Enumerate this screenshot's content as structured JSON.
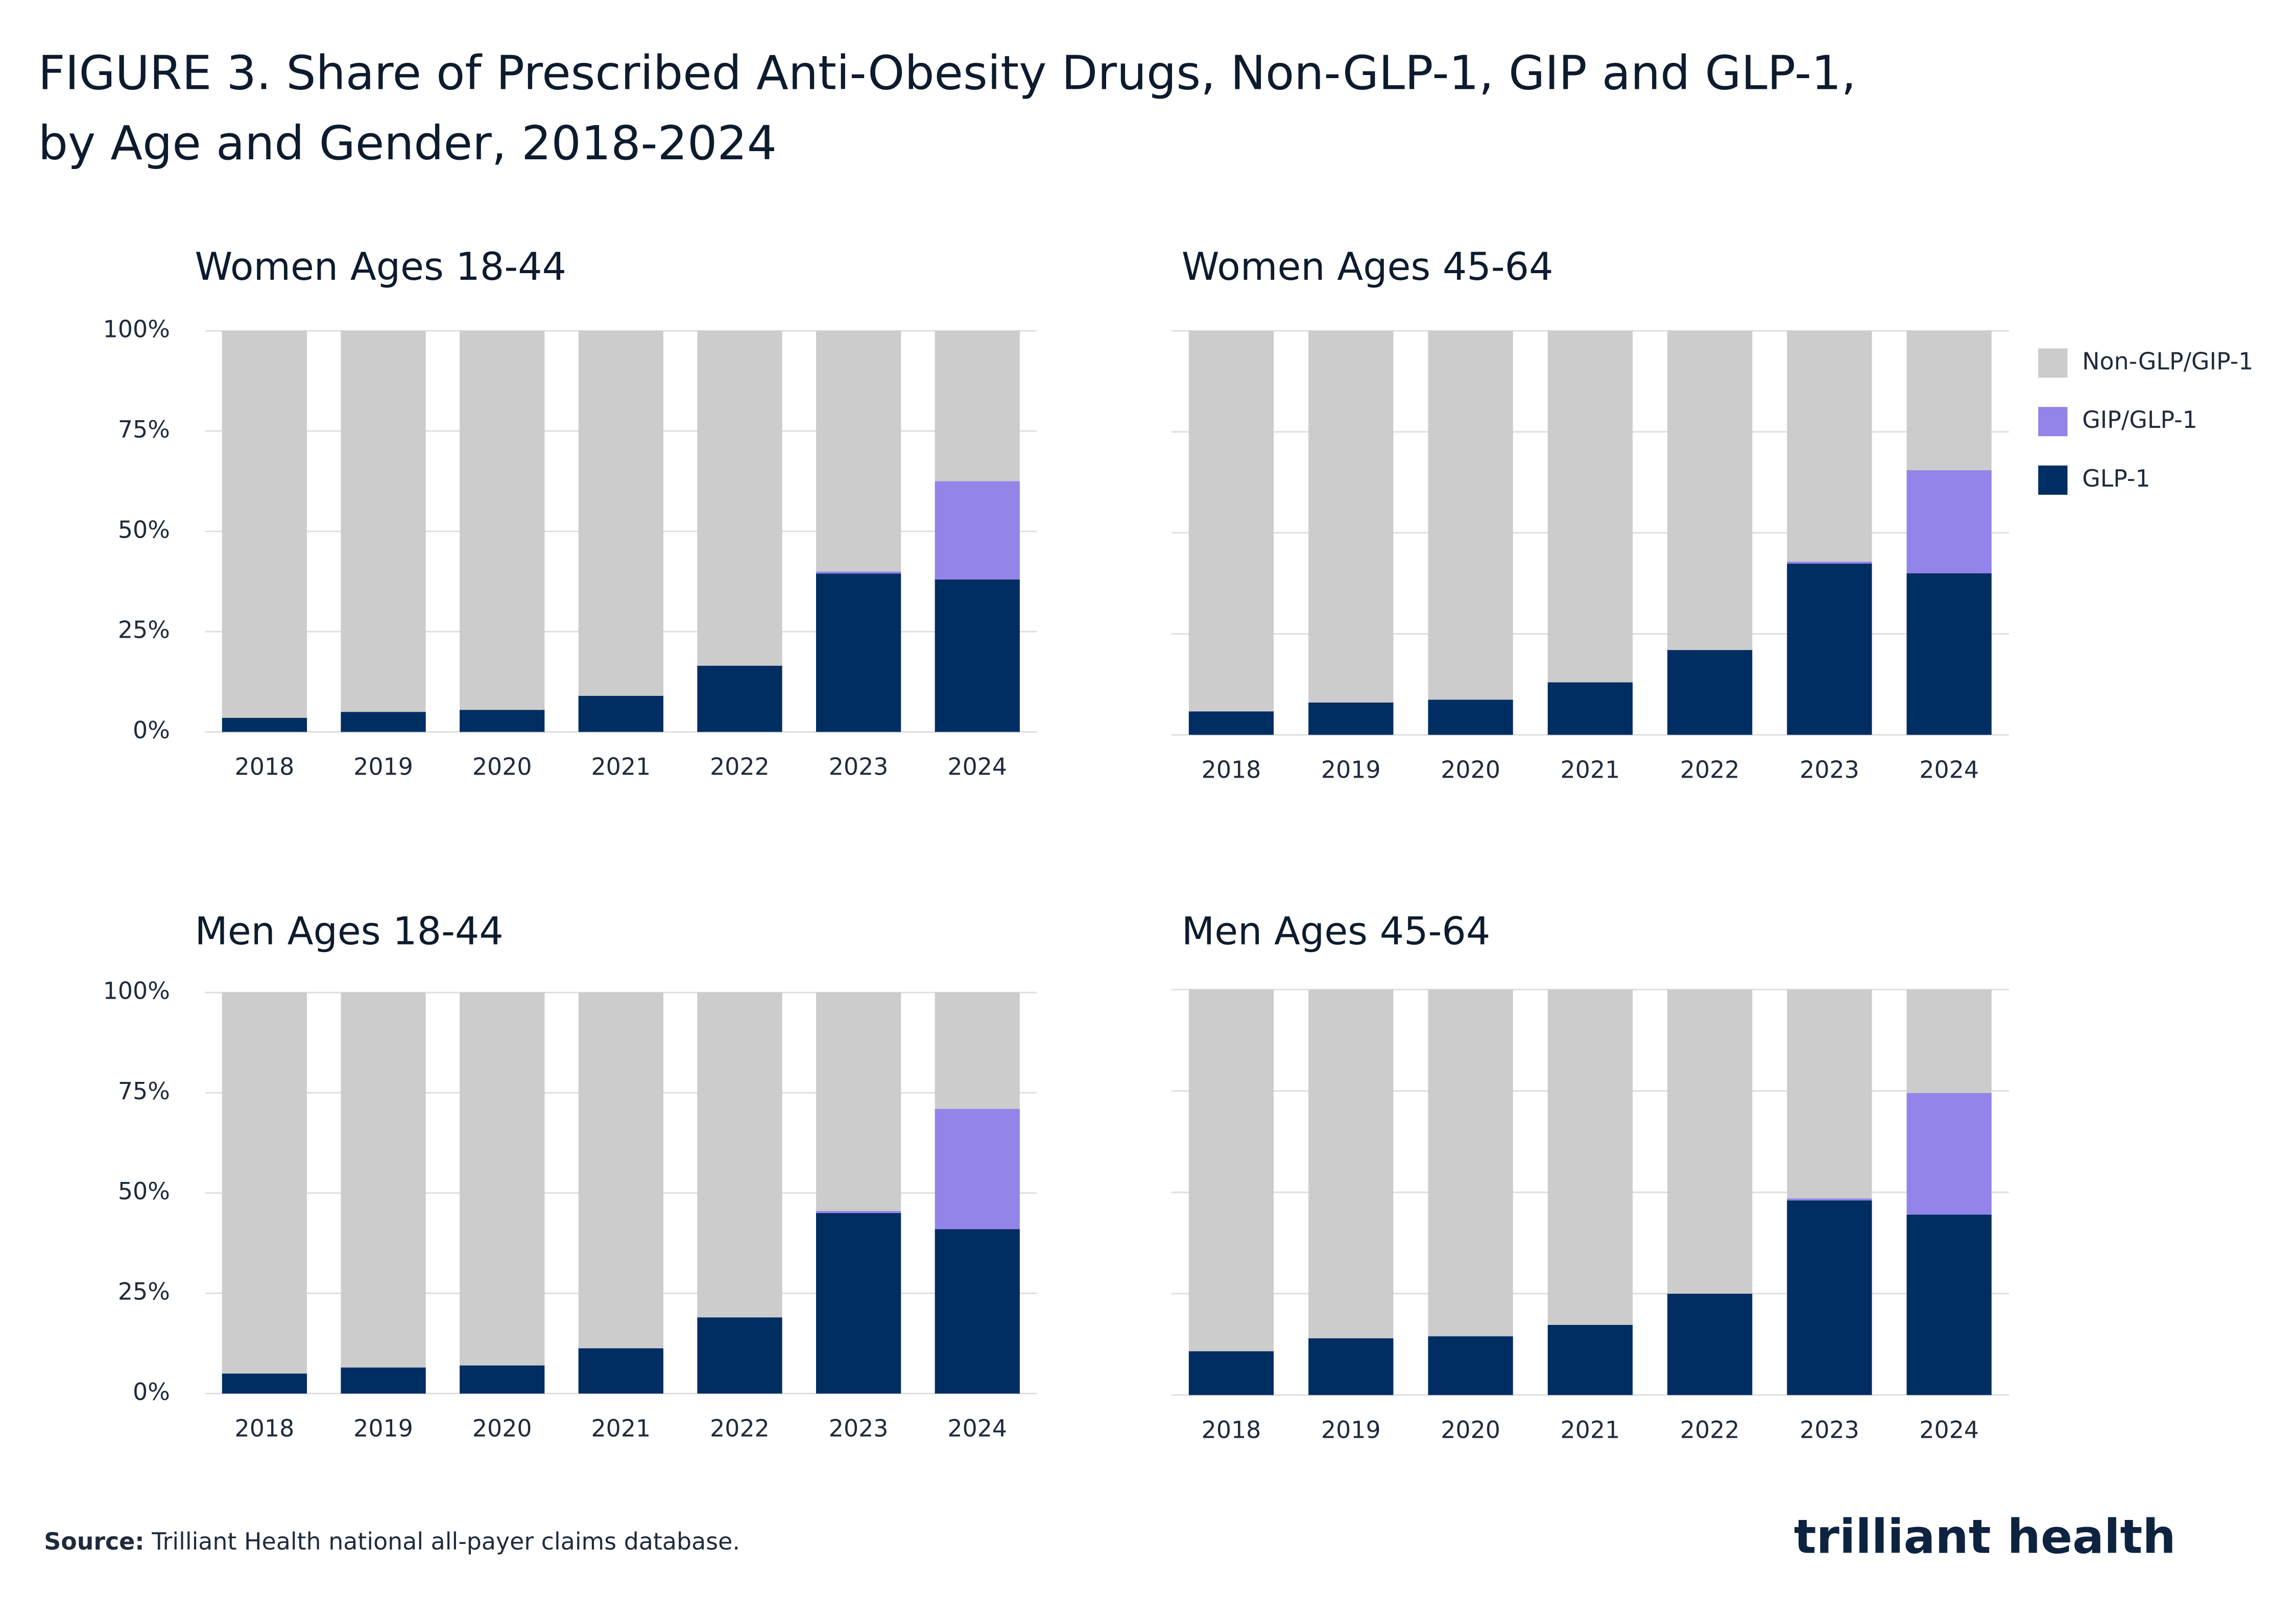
{
  "title_lines": [
    "FIGURE 3. Share of Prescribed Anti-Obesity Drugs, Non-GLP-1, GIP and GLP-1,",
    "by Age and Gender, 2018-2024"
  ],
  "source": {
    "label": "Source:",
    "text": " Trilliant Health national all-payer claims database."
  },
  "logo": "trilliant health",
  "chart_data": [
    {
      "type": "bar",
      "stacked": true,
      "title": "Women Ages 18-44",
      "categories": [
        "2018",
        "2019",
        "2020",
        "2021",
        "2022",
        "2023",
        "2024"
      ],
      "series": [
        {
          "color": "#002d62",
          "values": [
            3.5,
            5,
            5.5,
            9,
            16.5,
            39.5,
            38
          ]
        },
        {
          "color": "#9384ea",
          "values": [
            0,
            0,
            0,
            0,
            0,
            0.5,
            24.5
          ]
        },
        {
          "color": "#cccccc",
          "values": [
            96.5,
            95,
            94.5,
            91,
            83.5,
            60,
            37.5
          ]
        }
      ],
      "ylim": [
        0,
        100
      ],
      "yticks": [
        {
          "value": 0,
          "label": "0%"
        },
        {
          "value": 25,
          "label": "25%"
        },
        {
          "value": 50,
          "label": "50%"
        },
        {
          "value": 75,
          "label": "75%"
        },
        {
          "value": 100,
          "label": "100%"
        }
      ],
      "grid": true
    },
    {
      "type": "bar",
      "stacked": true,
      "title": "Women Ages 45-64",
      "categories": [
        "2018",
        "2019",
        "2020",
        "2021",
        "2022",
        "2023",
        "2024"
      ],
      "series": [
        {
          "name": "GLP-1",
          "color": "#002d62",
          "values": [
            5.8,
            8,
            8.7,
            13,
            21,
            42.4,
            40
          ]
        },
        {
          "name": "GIP/GLP-1",
          "color": "#9384ea",
          "values": [
            0,
            0,
            0,
            0,
            0,
            0.5,
            25.5
          ]
        },
        {
          "name": "Non-GLP/GIP-1",
          "color": "#cccccc",
          "values": [
            94.2,
            92,
            91.3,
            87,
            79,
            57.1,
            34.5
          ]
        }
      ],
      "ylim": [
        0,
        100
      ],
      "yticks": [
        0,
        25,
        50,
        75,
        100
      ],
      "show_ytick_labels": false,
      "grid": true,
      "legend": "right"
    },
    {
      "type": "bar",
      "stacked": true,
      "title": "Men Ages 18-44",
      "categories": [
        "2018",
        "2019",
        "2020",
        "2021",
        "2022",
        "2023",
        "2024"
      ],
      "series": [
        {
          "color": "#002d62",
          "values": [
            5,
            6.5,
            7,
            11.3,
            19,
            45,
            41
          ]
        },
        {
          "color": "#9384ea",
          "values": [
            0,
            0,
            0,
            0,
            0,
            0.5,
            30
          ]
        },
        {
          "color": "#cccccc",
          "values": [
            95,
            93.5,
            93,
            88.7,
            81,
            54.5,
            29
          ]
        }
      ],
      "ylim": [
        0,
        100
      ],
      "yticks": [
        {
          "value": 0,
          "label": "0%"
        },
        {
          "value": 25,
          "label": "25%"
        },
        {
          "value": 50,
          "label": "50%"
        },
        {
          "value": 75,
          "label": "75%"
        },
        {
          "value": 100,
          "label": "100%"
        }
      ],
      "grid": true
    },
    {
      "type": "bar",
      "stacked": true,
      "title": "Men Ages 45-64",
      "categories": [
        "2018",
        "2019",
        "2020",
        "2021",
        "2022",
        "2023",
        "2024"
      ],
      "series": [
        {
          "color": "#002d62",
          "values": [
            10.8,
            14,
            14.5,
            17.3,
            25,
            48,
            44.5
          ]
        },
        {
          "color": "#9384ea",
          "values": [
            0,
            0,
            0,
            0,
            0,
            0.5,
            30
          ]
        },
        {
          "color": "#cccccc",
          "values": [
            89.2,
            86,
            85.5,
            82.7,
            75,
            51.5,
            25.5
          ]
        }
      ],
      "ylim": [
        0,
        100
      ],
      "yticks": [
        0,
        25,
        50,
        75,
        100
      ],
      "show_ytick_labels": false,
      "grid": true
    }
  ]
}
